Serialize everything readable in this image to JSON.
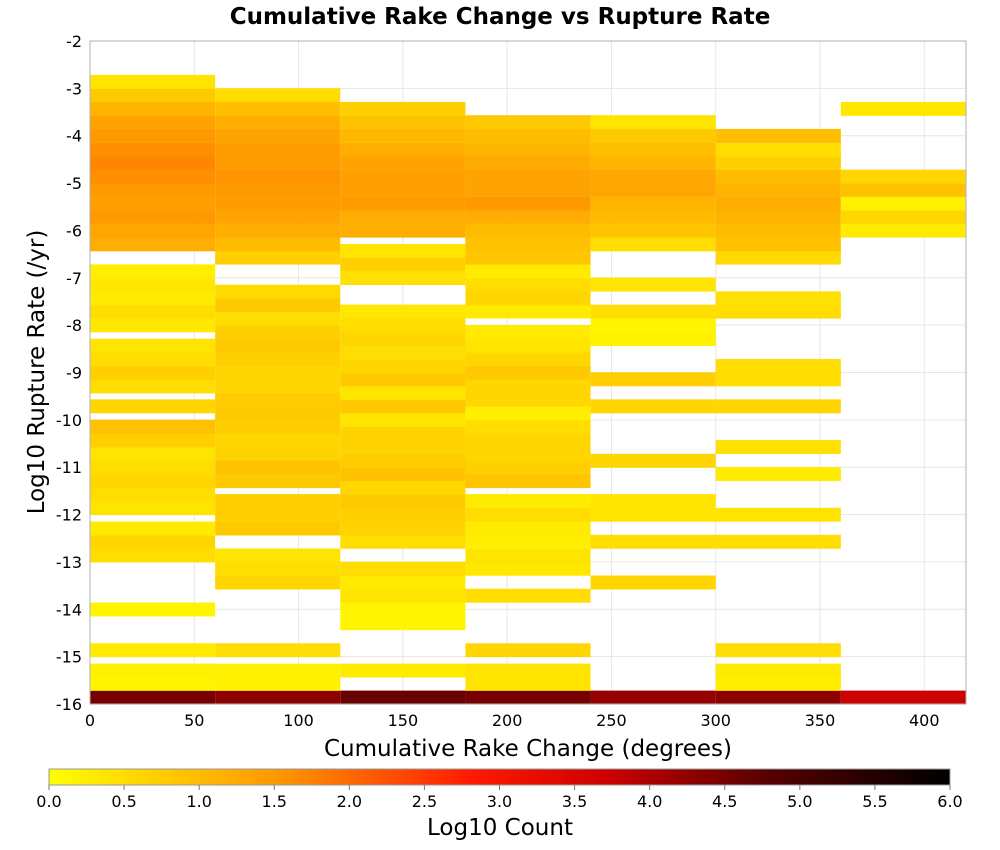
{
  "chart_data": {
    "type": "heatmap",
    "title": "Cumulative Rake Change vs Rupture Rate",
    "xlabel": "Cumulative Rake Change (degrees)",
    "ylabel": "Log10 Rupture Rate (/yr)",
    "xlim": [
      0,
      420
    ],
    "ylim": [
      -16,
      -2
    ],
    "x_ticks": [
      0,
      50,
      100,
      150,
      200,
      250,
      300,
      350,
      400
    ],
    "y_ticks": [
      -2,
      -3,
      -4,
      -5,
      -6,
      -7,
      -8,
      -9,
      -10,
      -11,
      -12,
      -13,
      -14,
      -15,
      -16
    ],
    "grid": true,
    "x_bin_width": 60,
    "y_bin_height": 0.286,
    "colorbar": {
      "label": "Log10 Count",
      "min": 0.0,
      "max": 6.0,
      "ticks": [
        "0.0",
        "0.5",
        "1.0",
        "1.5",
        "2.0",
        "2.5",
        "3.0",
        "3.5",
        "4.0",
        "4.5",
        "5.0",
        "5.5",
        "6.0"
      ],
      "colors": [
        "#ffff00",
        "#ff9900",
        "#ff1a00",
        "#cc0000",
        "#550000",
        "#000000"
      ]
    },
    "columns": [
      {
        "x_start": 0,
        "cells": [
          [
            -15.86,
            4.5
          ],
          [
            -15.57,
            0.15
          ],
          [
            -15.29,
            0.2
          ],
          [
            -14.86,
            0.3
          ],
          [
            -14,
            0.15
          ],
          [
            -12.86,
            0.5
          ],
          [
            -12.57,
            0.6
          ],
          [
            -12.29,
            0.3
          ],
          [
            -11.86,
            0.4
          ],
          [
            -11.57,
            0.5
          ],
          [
            -11.29,
            0.6
          ],
          [
            -11,
            0.5
          ],
          [
            -10.71,
            0.4
          ],
          [
            -10.43,
            0.7
          ],
          [
            -10.14,
            0.9
          ],
          [
            -9.71,
            0.6
          ],
          [
            -9.29,
            0.5
          ],
          [
            -9,
            0.7
          ],
          [
            -8.71,
            0.5
          ],
          [
            -8.43,
            0.4
          ],
          [
            -8,
            0.35
          ],
          [
            -7.71,
            0.5
          ],
          [
            -7.43,
            0.3
          ],
          [
            -7.14,
            0.35
          ],
          [
            -6.86,
            0.25
          ],
          [
            -6.29,
            1.2
          ],
          [
            -6,
            1.3
          ],
          [
            -5.71,
            1.5
          ],
          [
            -5.43,
            1.4
          ],
          [
            -5.14,
            1.5
          ],
          [
            -4.86,
            1.6
          ],
          [
            -4.57,
            1.7
          ],
          [
            -4.29,
            1.6
          ],
          [
            -4,
            1.5
          ],
          [
            -3.71,
            1.35
          ],
          [
            -3.43,
            1.1
          ],
          [
            -3.14,
            0.8
          ],
          [
            -2.86,
            0.4
          ]
        ]
      },
      {
        "x_start": 60,
        "cells": [
          [
            -15.86,
            4.3
          ],
          [
            -15.57,
            0.2
          ],
          [
            -15.29,
            0.2
          ],
          [
            -14.86,
            0.5
          ],
          [
            -13.43,
            0.6
          ],
          [
            -13.14,
            0.5
          ],
          [
            -12.86,
            0.4
          ],
          [
            -12.29,
            0.8
          ],
          [
            -12,
            0.7
          ],
          [
            -11.71,
            0.7
          ],
          [
            -11.29,
            0.8
          ],
          [
            -11,
            0.9
          ],
          [
            -10.71,
            0.65
          ],
          [
            -10.43,
            0.6
          ],
          [
            -10.14,
            0.75
          ],
          [
            -9.86,
            0.8
          ],
          [
            -9.57,
            0.75
          ],
          [
            -9.29,
            0.6
          ],
          [
            -9,
            0.6
          ],
          [
            -8.71,
            0.7
          ],
          [
            -8.43,
            0.8
          ],
          [
            -8.14,
            0.7
          ],
          [
            -7.86,
            0.5
          ],
          [
            -7.57,
            0.8
          ],
          [
            -7.29,
            0.55
          ],
          [
            -6.57,
            0.7
          ],
          [
            -6.29,
            1.0
          ],
          [
            -6,
            1.2
          ],
          [
            -5.71,
            1.35
          ],
          [
            -5.43,
            1.45
          ],
          [
            -5.14,
            1.5
          ],
          [
            -4.86,
            1.55
          ],
          [
            -4.57,
            1.45
          ],
          [
            -4.29,
            1.45
          ],
          [
            -4,
            1.35
          ],
          [
            -3.71,
            1.2
          ],
          [
            -3.43,
            0.95
          ],
          [
            -3.14,
            0.5
          ]
        ]
      },
      {
        "x_start": 120,
        "cells": [
          [
            -15.86,
            4.6
          ],
          [
            -15.29,
            0.3
          ],
          [
            -14.29,
            0.15
          ],
          [
            -14,
            0.15
          ],
          [
            -13.71,
            0.4
          ],
          [
            -13.43,
            0.3
          ],
          [
            -13.14,
            0.5
          ],
          [
            -12.57,
            0.5
          ],
          [
            -12.29,
            0.65
          ],
          [
            -12,
            0.7
          ],
          [
            -11.71,
            0.8
          ],
          [
            -11.43,
            0.6
          ],
          [
            -11.14,
            0.9
          ],
          [
            -10.86,
            0.75
          ],
          [
            -10.57,
            0.65
          ],
          [
            -10.29,
            0.65
          ],
          [
            -10,
            0.4
          ],
          [
            -9.71,
            0.8
          ],
          [
            -9.43,
            0.4
          ],
          [
            -9.14,
            0.8
          ],
          [
            -8.86,
            0.6
          ],
          [
            -8.57,
            0.5
          ],
          [
            -8.29,
            0.6
          ],
          [
            -8,
            0.5
          ],
          [
            -7.71,
            0.35
          ],
          [
            -7,
            0.45
          ],
          [
            -6.71,
            0.7
          ],
          [
            -6.43,
            0.4
          ],
          [
            -6,
            1.2
          ],
          [
            -5.71,
            1.2
          ],
          [
            -5.43,
            1.45
          ],
          [
            -5.14,
            1.4
          ],
          [
            -4.86,
            1.4
          ],
          [
            -4.57,
            1.35
          ],
          [
            -4.29,
            1.2
          ],
          [
            -4,
            1.05
          ],
          [
            -3.71,
            0.9
          ],
          [
            -3.43,
            0.7
          ]
        ]
      },
      {
        "x_start": 180,
        "cells": [
          [
            -15.86,
            4.5
          ],
          [
            -15.57,
            0.4
          ],
          [
            -15.29,
            0.4
          ],
          [
            -14.86,
            0.6
          ],
          [
            -13.71,
            0.5
          ],
          [
            -13.14,
            0.35
          ],
          [
            -12.86,
            0.4
          ],
          [
            -12.57,
            0.25
          ],
          [
            -12.29,
            0.3
          ],
          [
            -12,
            0.5
          ],
          [
            -11.71,
            0.3
          ],
          [
            -11.29,
            0.85
          ],
          [
            -11,
            0.7
          ],
          [
            -10.71,
            0.6
          ],
          [
            -10.43,
            0.6
          ],
          [
            -10.14,
            0.5
          ],
          [
            -9.86,
            0.25
          ],
          [
            -9.57,
            0.6
          ],
          [
            -9.29,
            0.6
          ],
          [
            -9,
            0.8
          ],
          [
            -8.71,
            0.6
          ],
          [
            -8.43,
            0.4
          ],
          [
            -8.14,
            0.3
          ],
          [
            -7.71,
            0.3
          ],
          [
            -7.43,
            0.6
          ],
          [
            -7.14,
            0.5
          ],
          [
            -6.86,
            0.3
          ],
          [
            -6.57,
            0.85
          ],
          [
            -6.29,
            0.9
          ],
          [
            -6,
            1.0
          ],
          [
            -5.71,
            1.2
          ],
          [
            -5.43,
            1.5
          ],
          [
            -5.14,
            1.35
          ],
          [
            -4.86,
            1.35
          ],
          [
            -4.57,
            1.25
          ],
          [
            -4.29,
            1.1
          ],
          [
            -4,
            1.0
          ],
          [
            -3.71,
            0.8
          ]
        ]
      },
      {
        "x_start": 240,
        "cells": [
          [
            -15.86,
            4.2
          ],
          [
            -13.43,
            0.6
          ],
          [
            -12.57,
            0.5
          ],
          [
            -12,
            0.4
          ],
          [
            -11.71,
            0.4
          ],
          [
            -10.86,
            0.6
          ],
          [
            -9.71,
            0.6
          ],
          [
            -9.14,
            0.7
          ],
          [
            -8.29,
            0.2
          ],
          [
            -8,
            0.15
          ],
          [
            -7.71,
            0.5
          ],
          [
            -7.14,
            0.4
          ],
          [
            -6.29,
            0.5
          ],
          [
            -6,
            0.85
          ],
          [
            -5.71,
            1.0
          ],
          [
            -5.43,
            1.1
          ],
          [
            -5.14,
            1.3
          ],
          [
            -4.86,
            1.3
          ],
          [
            -4.57,
            1.1
          ],
          [
            -4.29,
            0.95
          ],
          [
            -4,
            0.8
          ],
          [
            -3.71,
            0.4
          ]
        ]
      },
      {
        "x_start": 300,
        "cells": [
          [
            -15.86,
            4.3
          ],
          [
            -15.57,
            0.25
          ],
          [
            -15.29,
            0.3
          ],
          [
            -14.86,
            0.5
          ],
          [
            -12.57,
            0.5
          ],
          [
            -12,
            0.4
          ],
          [
            -11.14,
            0.3
          ],
          [
            -10.57,
            0.45
          ],
          [
            -9.71,
            0.6
          ],
          [
            -9.14,
            0.5
          ],
          [
            -8.86,
            0.5
          ],
          [
            -7.71,
            0.5
          ],
          [
            -7.43,
            0.45
          ],
          [
            -6.57,
            0.55
          ],
          [
            -6.29,
            0.9
          ],
          [
            -6,
            1.0
          ],
          [
            -5.71,
            1.1
          ],
          [
            -5.43,
            1.2
          ],
          [
            -5.14,
            1.1
          ],
          [
            -4.86,
            1.0
          ],
          [
            -4.57,
            0.7
          ],
          [
            -4.29,
            0.5
          ],
          [
            -4,
            0.95
          ]
        ]
      },
      {
        "x_start": 360,
        "cells": [
          [
            -15.86,
            3.7
          ],
          [
            -6,
            0.3
          ],
          [
            -5.71,
            0.6
          ],
          [
            -5.43,
            0.2
          ],
          [
            -5.14,
            0.9
          ],
          [
            -4.86,
            0.6
          ],
          [
            -3.43,
            0.35
          ]
        ]
      }
    ]
  }
}
